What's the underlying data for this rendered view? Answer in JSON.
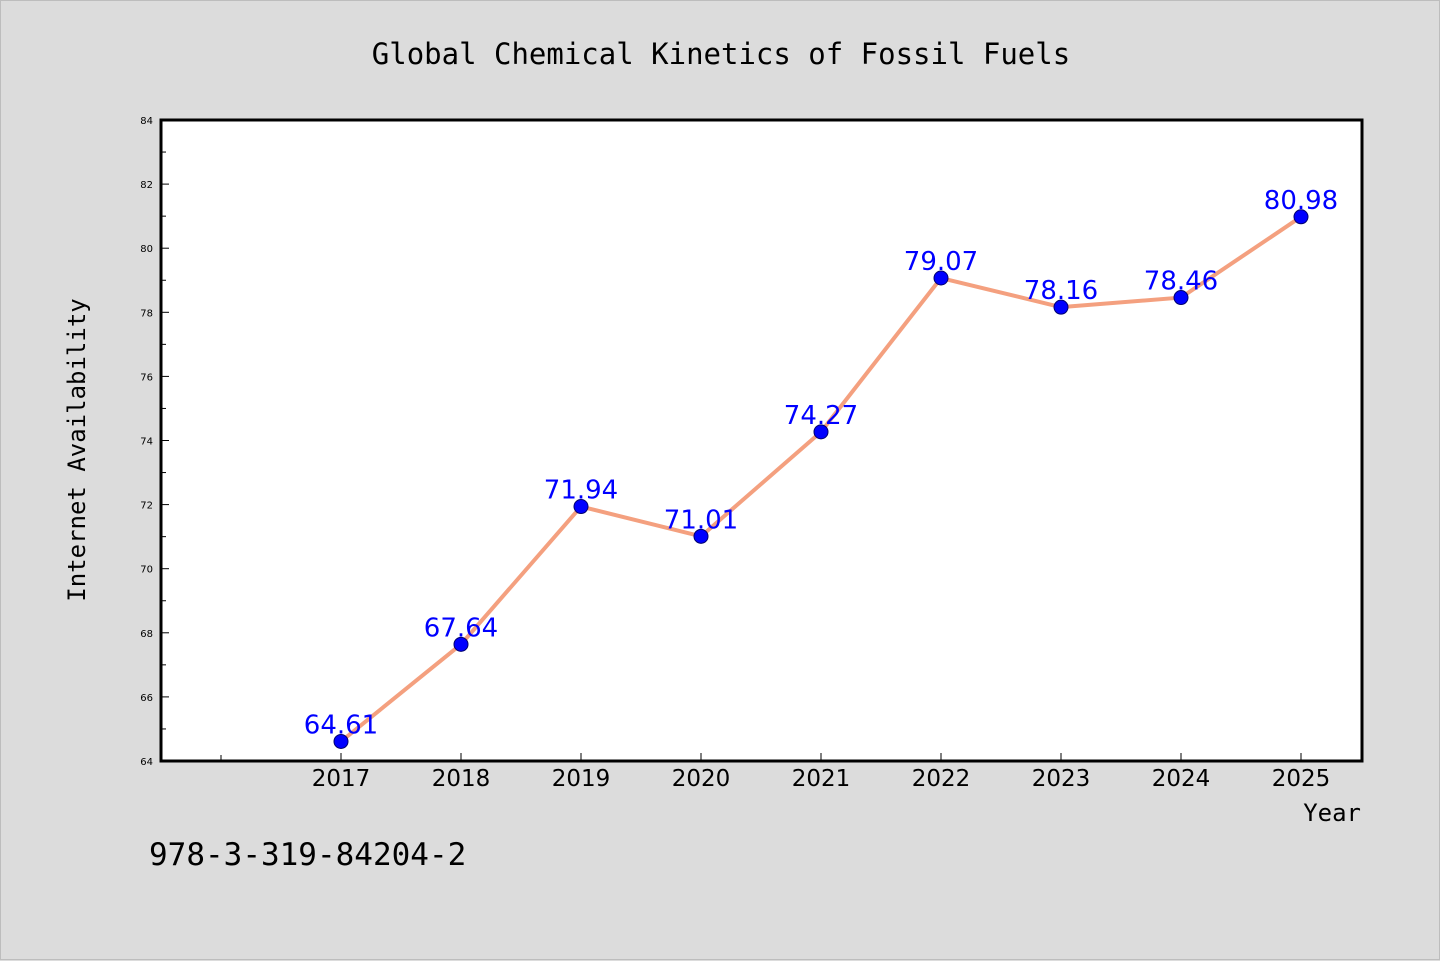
{
  "chart_data": {
    "type": "line",
    "title": "Global Chemical Kinetics of Fossil Fuels",
    "xlabel": "Year",
    "ylabel": "Internet Availability",
    "categories": [
      "2017",
      "2018",
      "2019",
      "2020",
      "2021",
      "2022",
      "2023",
      "2024",
      "2025"
    ],
    "series": [
      {
        "values": [
          64.61,
          67.64,
          71.94,
          71.01,
          74.27,
          79.07,
          78.16,
          78.46,
          80.98
        ],
        "labels": [
          "64.61",
          "67.64",
          "71.94",
          "71.01",
          "74.27",
          "79.07",
          "78.16",
          "78.46",
          "80.98"
        ]
      }
    ],
    "ylim": [
      64,
      84
    ],
    "yticks": [
      "64",
      "66",
      "68",
      "70",
      "72",
      "74",
      "76",
      "78",
      "80",
      "82",
      "84"
    ],
    "grid": false,
    "legend": "none",
    "colors": {
      "line": "#f4a07f",
      "marker": "#0000ff",
      "marker_edge": "#00006e",
      "data_label": "#0000ff"
    }
  },
  "caption": "978-3-319-84204-2"
}
